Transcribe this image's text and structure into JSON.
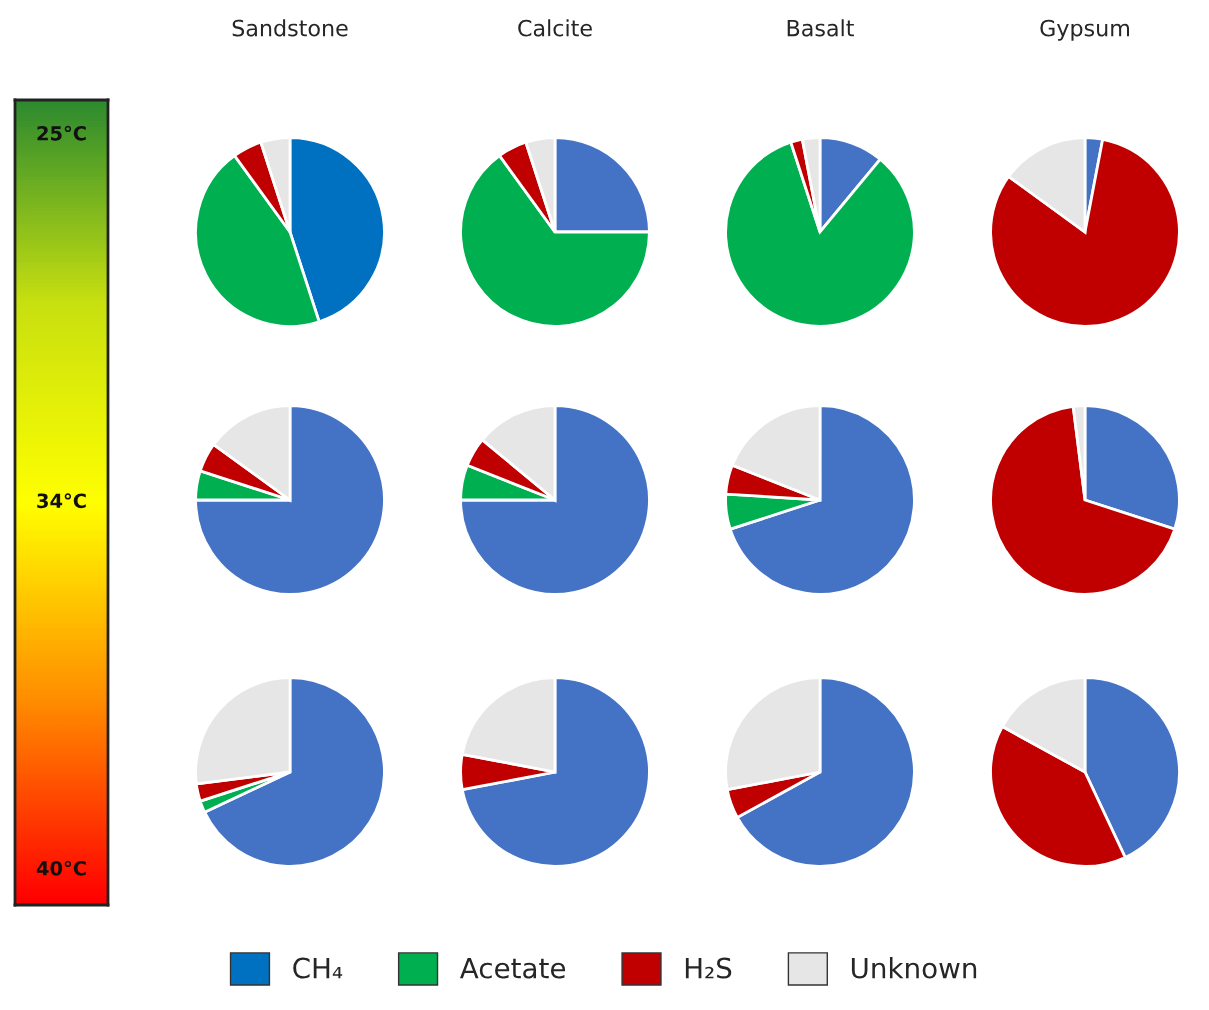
{
  "chart_data": [
    {
      "type": "pie",
      "title": "Sandstone",
      "categories": [
        "CH₄",
        "Acetate",
        "H₂S",
        "Unknown"
      ],
      "values": [
        45,
        45,
        5,
        5
      ],
      "colors": [
        "#0070c0",
        "#00b050",
        "#c00000",
        "#e7e6e6"
      ],
      "annotations": [
        "25°C"
      ],
      "legend": "bottom"
    },
    {
      "type": "pie",
      "title": "Calcite",
      "categories": [
        null,
        null,
        null,
        null
      ],
      "values": [
        25,
        65,
        5,
        5
      ],
      "colors": [
        "#4472c4",
        "#00b050",
        "#c00000",
        "#e7e6e6"
      ]
    },
    {
      "type": "pie",
      "title": "Basalt",
      "categories": [
        null,
        null,
        null,
        null
      ],
      "values": [
        11,
        84,
        2,
        3
      ],
      "colors": [
        "#4472c4",
        "#00b050",
        "#c00000",
        "#e7e6e6"
      ]
    },
    {
      "type": "pie",
      "title": "Gypsum",
      "categories": [
        null,
        null,
        null,
        null
      ],
      "values": [
        3,
        0,
        82,
        15
      ],
      "colors": [
        "#4472c4",
        "#00b050",
        "#c00000",
        "#e7e6e6"
      ]
    },
    {
      "type": "pie",
      "categories": [
        null,
        null,
        null,
        null
      ],
      "values": [
        75,
        5,
        5,
        15
      ],
      "colors": [
        "#4472c4",
        "#00b050",
        "#c00000",
        "#e7e6e6"
      ],
      "annotations": [
        "34°C"
      ]
    },
    {
      "type": "pie",
      "categories": [
        null,
        null,
        null,
        null
      ],
      "values": [
        75,
        6,
        5,
        14
      ],
      "colors": [
        "#4472c4",
        "#00b050",
        "#c00000",
        "#e7e6e6"
      ]
    },
    {
      "type": "pie",
      "categories": [
        null,
        null,
        null,
        null
      ],
      "values": [
        70,
        6,
        5,
        19
      ],
      "colors": [
        "#4472c4",
        "#00b050",
        "#c00000",
        "#e7e6e6"
      ]
    },
    {
      "type": "pie",
      "categories": [
        null,
        null,
        null,
        null
      ],
      "values": [
        30,
        0,
        68,
        2
      ],
      "colors": [
        "#4472c4",
        "#00b050",
        "#c00000",
        "#e7e6e6"
      ]
    },
    {
      "type": "pie",
      "categories": [
        null,
        null,
        null,
        null
      ],
      "values": [
        68,
        2,
        3,
        27
      ],
      "colors": [
        "#4472c4",
        "#00b050",
        "#c00000",
        "#e7e6e6"
      ],
      "annotations": [
        "40°C"
      ]
    },
    {
      "type": "pie",
      "categories": [
        null,
        null,
        null,
        null
      ],
      "values": [
        72,
        0,
        6,
        22
      ],
      "colors": [
        "#4472c4",
        "#00b050",
        "#c00000",
        "#e7e6e6"
      ]
    },
    {
      "type": "pie",
      "categories": [
        null,
        null,
        null,
        null
      ],
      "values": [
        67,
        0,
        5,
        28
      ],
      "colors": [
        "#4472c4",
        "#00b050",
        "#c00000",
        "#e7e6e6"
      ]
    },
    {
      "type": "pie",
      "categories": [
        null,
        null,
        null,
        null
      ],
      "values": [
        43,
        0,
        40,
        17
      ],
      "colors": [
        "#4472c4",
        "#00b050",
        "#c00000",
        "#e7e6e6"
      ]
    }
  ]
}
